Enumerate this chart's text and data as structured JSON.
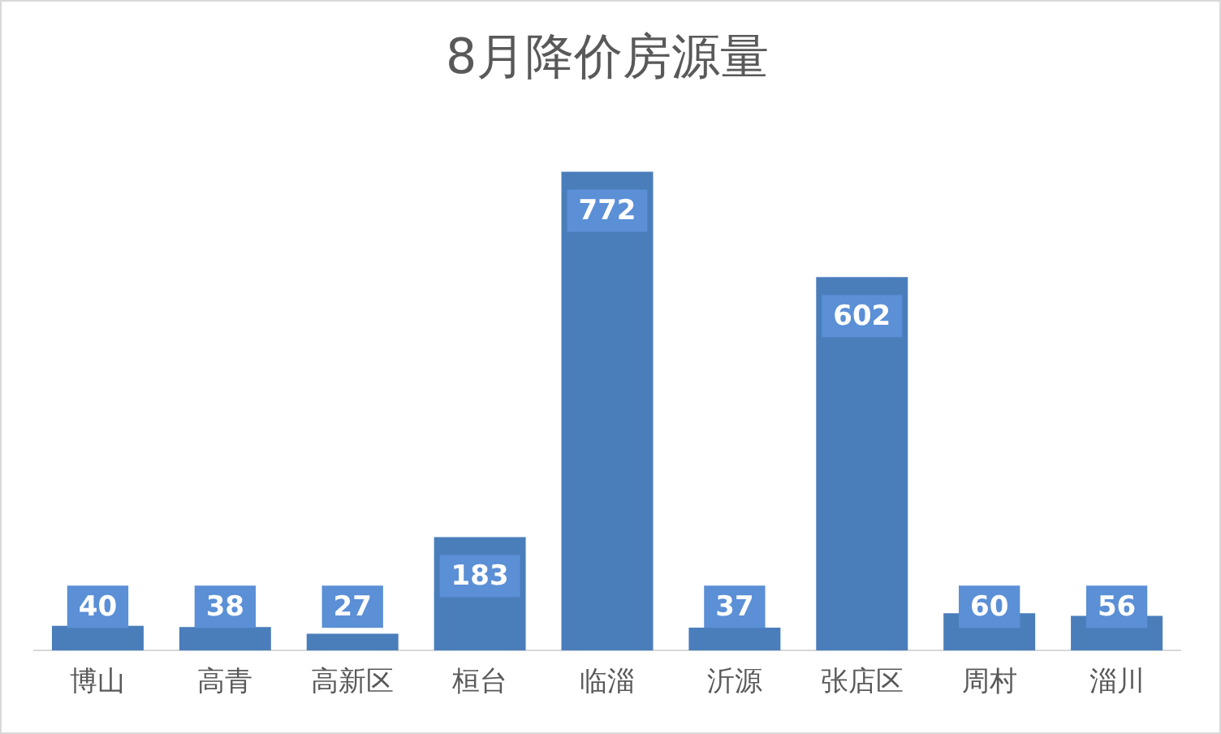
{
  "chart_data": {
    "type": "bar",
    "title": "8月降价房源量",
    "categories": [
      "博山",
      "高青",
      "高新区",
      "桓台",
      "临淄",
      "沂源",
      "张店区",
      "周村",
      "淄川"
    ],
    "values": [
      40,
      38,
      27,
      183,
      772,
      37,
      602,
      60,
      56
    ],
    "color": "#4a7ebb",
    "data_labels": true,
    "grid": false,
    "legend": false,
    "tick_labels": "x"
  }
}
